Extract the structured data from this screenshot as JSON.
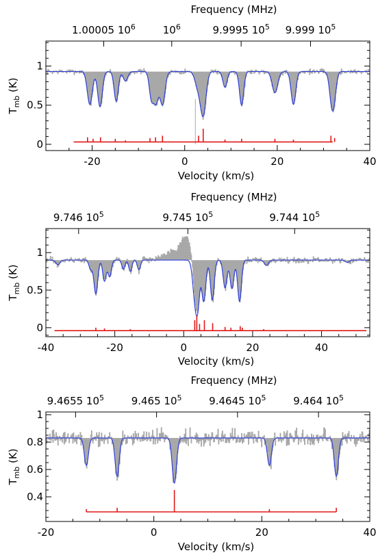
{
  "chart_data": [
    {
      "type": "line",
      "top_axis": {
        "title": "Frequency (MHz)",
        "labels": [
          {
            "mantissa": "1.00005",
            "exp": "6",
            "vel": -17.5
          },
          {
            "mantissa": "",
            "exp": "6",
            "vel": -2.8
          },
          {
            "mantissa": "9.9995",
            "exp": "5",
            "vel": 12.2
          },
          {
            "mantissa": "9.999",
            "exp": "5",
            "vel": 27.2
          }
        ]
      },
      "xlabel": "Velocity (km/s)",
      "ylabel": "T",
      "ylabel_sub": "mb",
      "ylabel_unit": " (K)",
      "xlim": [
        -30,
        40
      ],
      "ylim": [
        -0.08,
        1.32
      ],
      "xticks": [
        -20,
        0,
        20,
        40
      ],
      "yticks": [
        0,
        0.5,
        1
      ],
      "ytick_labels": [
        "0",
        "0.5",
        "1"
      ],
      "baseline": 0.93,
      "noise": 0.02,
      "emission": [],
      "components": [
        {
          "v": -20.5,
          "depth": 0.42,
          "width": 0.55
        },
        {
          "v": -18.3,
          "depth": 0.45,
          "width": 0.5
        },
        {
          "v": -14.8,
          "depth": 0.38,
          "width": 0.45
        },
        {
          "v": -12.8,
          "depth": 0.12,
          "width": 0.5
        },
        {
          "v": -7.2,
          "depth": 0.33,
          "width": 0.45
        },
        {
          "v": -6.2,
          "depth": 0.38,
          "width": 0.5
        },
        {
          "v": -4.8,
          "depth": 0.42,
          "width": 0.55
        },
        {
          "v": 2.8,
          "depth": 0.18,
          "width": 0.6
        },
        {
          "v": 4.0,
          "depth": 0.55,
          "width": 0.6
        },
        {
          "v": 8.7,
          "depth": 0.2,
          "width": 0.45
        },
        {
          "v": 12.3,
          "depth": 0.43,
          "width": 0.45
        },
        {
          "v": 19.5,
          "depth": 0.27,
          "width": 0.6
        },
        {
          "v": 23.5,
          "depth": 0.42,
          "width": 0.5
        },
        {
          "v": 31.8,
          "depth": 0.4,
          "width": 0.5
        },
        {
          "v": 32.4,
          "depth": 0.2,
          "width": 0.45
        }
      ],
      "lines_baseline": 0.03,
      "lines": [
        {
          "v": -21.0,
          "h": 0.06
        },
        {
          "v": -19.8,
          "h": 0.04
        },
        {
          "v": -18.2,
          "h": 0.06
        },
        {
          "v": -15.0,
          "h": 0.04
        },
        {
          "v": -12.8,
          "h": 0.02
        },
        {
          "v": -7.5,
          "h": 0.05
        },
        {
          "v": -6.3,
          "h": 0.06
        },
        {
          "v": -4.8,
          "h": 0.08
        },
        {
          "v": 3.0,
          "h": 0.08
        },
        {
          "v": 4.0,
          "h": 0.17
        },
        {
          "v": 8.7,
          "h": 0.03
        },
        {
          "v": 12.3,
          "h": 0.04
        },
        {
          "v": 19.5,
          "h": 0.04
        },
        {
          "v": 23.5,
          "h": 0.03
        },
        {
          "v": 31.6,
          "h": 0.08
        },
        {
          "v": 32.4,
          "h": 0.05
        }
      ],
      "lines_range": [
        -24,
        32
      ],
      "grey_marker": {
        "v": 2.3,
        "y0": 0.0,
        "y1": 0.58
      }
    },
    {
      "type": "line",
      "top_axis": {
        "title": "Frequency (MHz)",
        "labels": [
          {
            "mantissa": "9.746",
            "exp": "5",
            "vel": -30.5
          },
          {
            "mantissa": "9.745",
            "exp": "5",
            "vel": 1.2
          },
          {
            "mantissa": "9.744",
            "exp": "5",
            "vel": 32.2
          }
        ]
      },
      "xlabel": "Velocity (km/s)",
      "ylabel": "T",
      "ylabel_sub": "mb",
      "ylabel_unit": " (K)",
      "xlim": [
        -40,
        54
      ],
      "ylim": [
        -0.12,
        1.32
      ],
      "xticks": [
        -40,
        -20,
        0,
        20,
        40
      ],
      "yticks": [
        0,
        0.5,
        1
      ],
      "ytick_labels": [
        "0",
        "0.5",
        "1"
      ],
      "baseline": 0.9,
      "noise": 0.025,
      "emission": [
        {
          "v": 0.5,
          "amp": 0.3,
          "width": 1.6
        },
        {
          "v": -4.0,
          "amp": 0.1,
          "width": 2.2
        }
      ],
      "components": [
        {
          "v": -36.5,
          "depth": 0.06,
          "width": 0.6
        },
        {
          "v": -27.0,
          "depth": 0.12,
          "width": 0.5
        },
        {
          "v": -25.5,
          "depth": 0.45,
          "width": 0.55
        },
        {
          "v": -23.0,
          "depth": 0.28,
          "width": 0.5
        },
        {
          "v": -21.5,
          "depth": 0.22,
          "width": 0.5
        },
        {
          "v": -17.5,
          "depth": 0.12,
          "width": 0.45
        },
        {
          "v": -15.5,
          "depth": 0.15,
          "width": 0.45
        },
        {
          "v": -13.0,
          "depth": 0.13,
          "width": 0.45
        },
        {
          "v": 3.4,
          "depth": 0.58,
          "width": 0.7
        },
        {
          "v": 4.2,
          "depth": 0.35,
          "width": 0.5
        },
        {
          "v": 5.8,
          "depth": 0.55,
          "width": 0.6
        },
        {
          "v": 8.3,
          "depth": 0.53,
          "width": 0.55
        },
        {
          "v": 12.0,
          "depth": 0.37,
          "width": 0.55
        },
        {
          "v": 14.0,
          "depth": 0.38,
          "width": 0.55
        },
        {
          "v": 16.2,
          "depth": 0.55,
          "width": 0.55
        },
        {
          "v": 24.0,
          "depth": 0.07,
          "width": 0.6
        },
        {
          "v": 47.5,
          "depth": 0.03,
          "width": 0.6
        }
      ],
      "lines_baseline": -0.04,
      "lines": [
        {
          "v": -25.5,
          "h": 0.04
        },
        {
          "v": -23.0,
          "h": 0.03
        },
        {
          "v": -15.5,
          "h": 0.02
        },
        {
          "v": 3.2,
          "h": 0.14
        },
        {
          "v": 3.8,
          "h": 0.2
        },
        {
          "v": 4.6,
          "h": 0.09
        },
        {
          "v": 6.0,
          "h": 0.14
        },
        {
          "v": 8.4,
          "h": 0.1
        },
        {
          "v": 12.0,
          "h": 0.05
        },
        {
          "v": 13.7,
          "h": 0.04
        },
        {
          "v": 16.4,
          "h": 0.06
        },
        {
          "v": 17.0,
          "h": 0.04
        },
        {
          "v": 23.2,
          "h": 0.02
        }
      ],
      "lines_range": [
        -37.5,
        53
      ],
      "grey_marker": null
    },
    {
      "type": "line",
      "top_axis": {
        "title": "Frequency (MHz)",
        "labels": [
          {
            "mantissa": "9.4655",
            "exp": "5",
            "vel": -14.5
          },
          {
            "mantissa": "9.465",
            "exp": "5",
            "vel": 0.5
          },
          {
            "mantissa": "9.4645",
            "exp": "5",
            "vel": 15.5
          },
          {
            "mantissa": "9.464",
            "exp": "5",
            "vel": 30.5
          }
        ]
      },
      "xlabel": "Velocity (km/s)",
      "ylabel": "T",
      "ylabel_sub": "mb",
      "ylabel_unit": " (K)",
      "xlim": [
        -20,
        40
      ],
      "ylim": [
        0.22,
        1.02
      ],
      "xticks": [
        -20,
        0,
        20,
        40
      ],
      "yticks": [
        0.4,
        0.6,
        0.8,
        1
      ],
      "ytick_labels": [
        "0.4",
        "0.6",
        "0.8",
        "1"
      ],
      "baseline": 0.83,
      "noise": 0.035,
      "emission": [],
      "components": [
        {
          "v": -12.5,
          "depth": 0.2,
          "width": 0.38
        },
        {
          "v": -6.8,
          "depth": 0.28,
          "width": 0.38
        },
        {
          "v": 3.8,
          "depth": 0.33,
          "width": 0.4
        },
        {
          "v": 21.4,
          "depth": 0.2,
          "width": 0.38
        },
        {
          "v": 33.8,
          "depth": 0.28,
          "width": 0.38
        }
      ],
      "lines_baseline": 0.29,
      "lines": [
        {
          "v": -12.5,
          "h": 0.02
        },
        {
          "v": -6.8,
          "h": 0.03
        },
        {
          "v": 3.8,
          "h": 0.16
        },
        {
          "v": 21.4,
          "h": 0.02
        },
        {
          "v": 33.8,
          "h": 0.03
        }
      ],
      "lines_range": [
        -12.5,
        33.8
      ],
      "grey_marker": null
    }
  ],
  "colors": {
    "data": "#a8a8a8",
    "fit": "#2f3fd6",
    "lines": "#e01818",
    "axes": "#000000"
  }
}
